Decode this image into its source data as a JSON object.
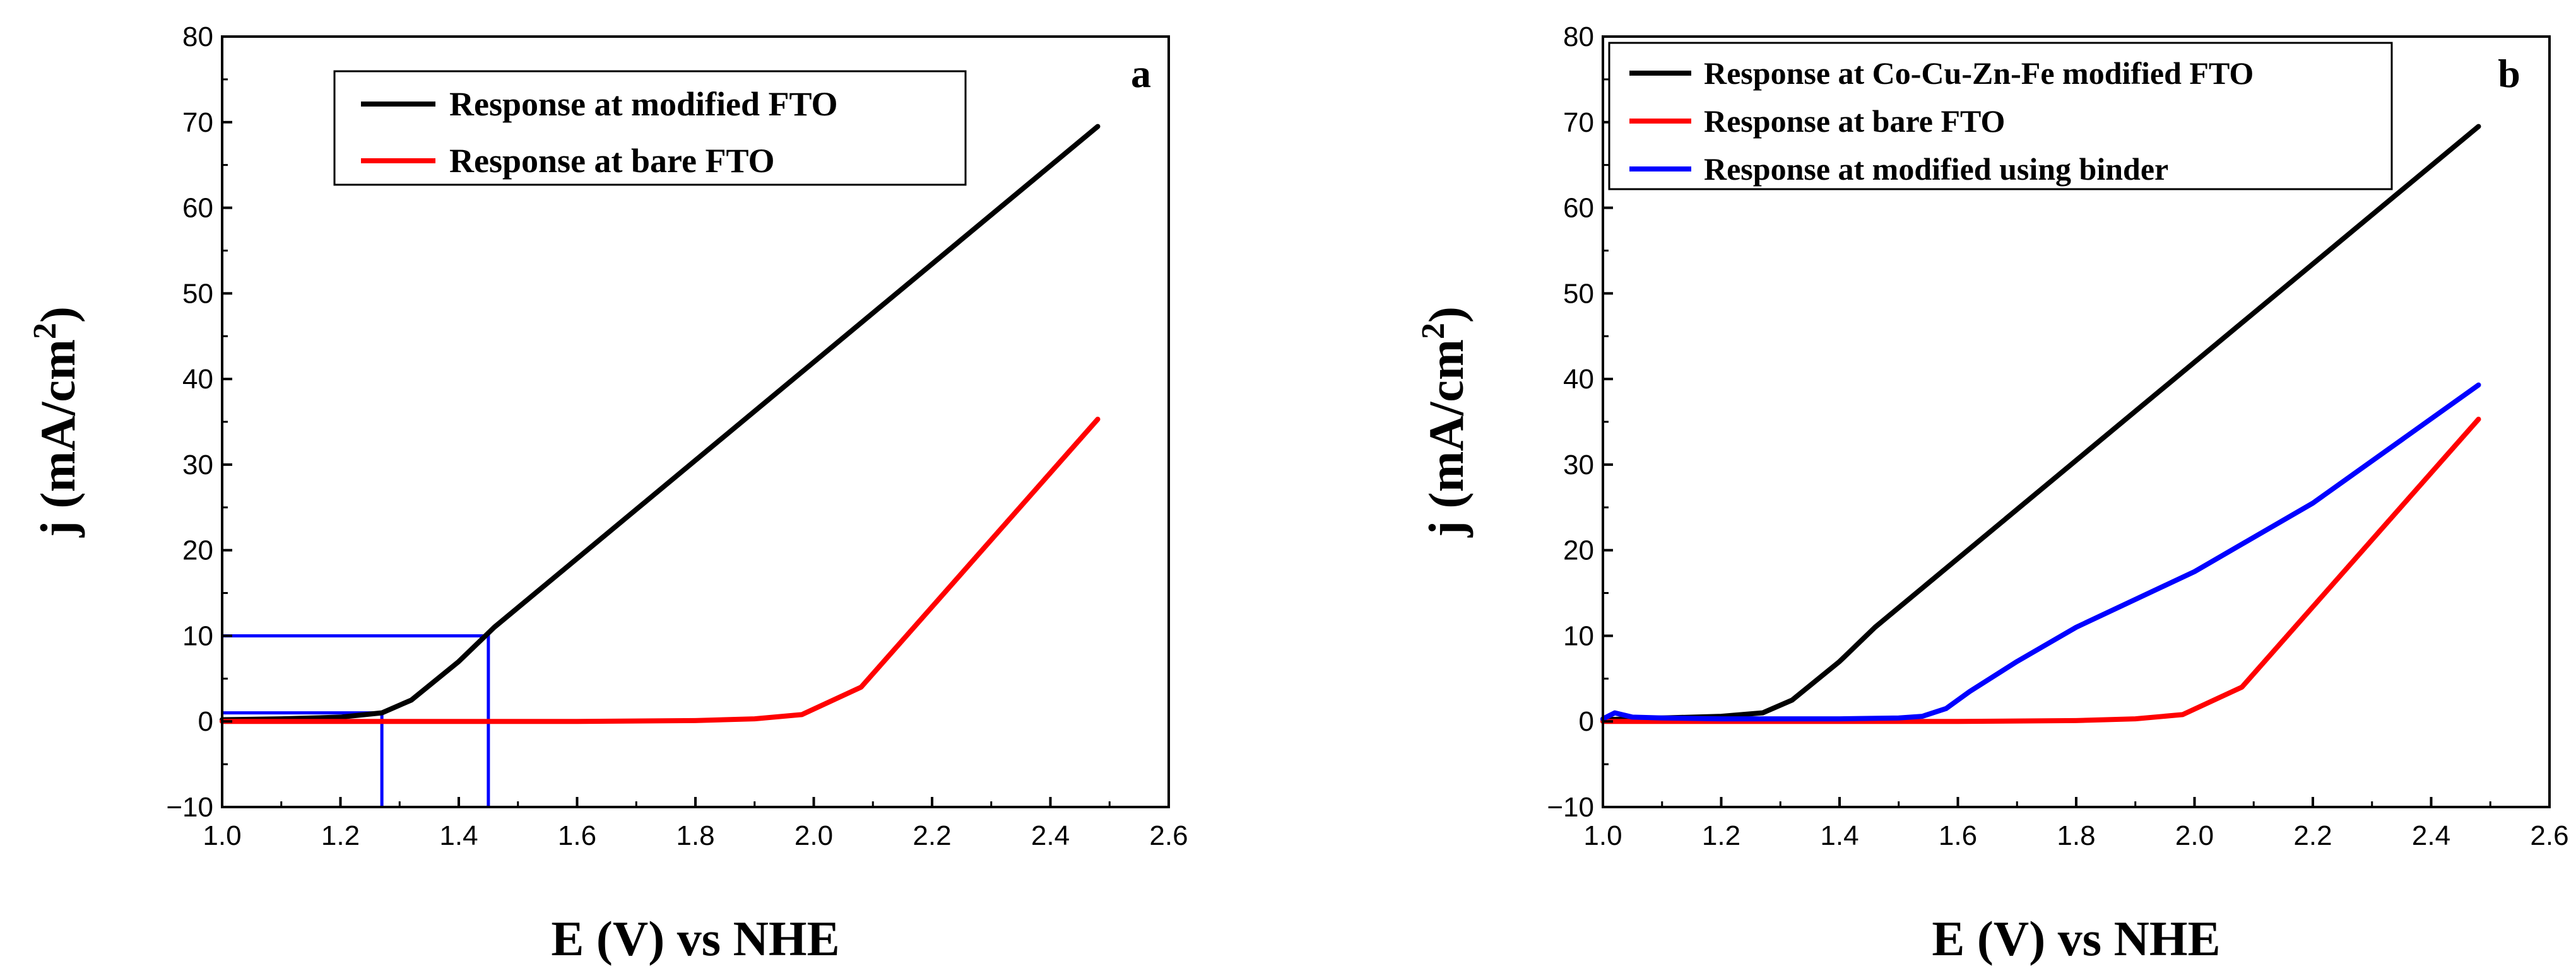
{
  "chart_data": [
    {
      "type": "line",
      "panel_label": "a",
      "xlabel": "E (V) vs NHE",
      "ylabel": {
        "main": "j (mA/cm",
        "sup": "2",
        "end": ")"
      },
      "xlim": [
        1.0,
        2.6
      ],
      "ylim": [
        -10,
        80
      ],
      "xticks": [
        "1.0",
        "1.2",
        "1.4",
        "1.6",
        "1.8",
        "2.0",
        "2.2",
        "2.4",
        "2.6"
      ],
      "yticks": [
        "-10",
        "0",
        "10",
        "20",
        "30",
        "40",
        "50",
        "60",
        "70",
        "80"
      ],
      "legend_position": "top-center",
      "series": [
        {
          "name": "Response at modified FTO",
          "color": "#000000",
          "x": [
            1.0,
            1.1,
            1.2,
            1.27,
            1.32,
            1.4,
            1.46,
            2.48
          ],
          "y": [
            0.2,
            0.3,
            0.5,
            1.0,
            2.5,
            7.0,
            11.0,
            69.5
          ]
        },
        {
          "name": "Response at bare FTO",
          "color": "#ff0000",
          "x": [
            1.0,
            1.2,
            1.4,
            1.6,
            1.8,
            1.9,
            1.98,
            2.08,
            2.48
          ],
          "y": [
            0.0,
            0.0,
            0.0,
            0.0,
            0.1,
            0.3,
            0.8,
            4.0,
            35.3
          ]
        }
      ],
      "annotations": [
        {
          "color": "#0000ff",
          "x": [
            1.0,
            1.45,
            1.45
          ],
          "y": [
            10,
            10,
            -10
          ]
        },
        {
          "color": "#0000ff",
          "x": [
            1.0,
            1.27,
            1.27
          ],
          "y": [
            1,
            1,
            -10
          ]
        }
      ]
    },
    {
      "type": "line",
      "panel_label": "b",
      "xlabel": "E (V) vs NHE",
      "ylabel": {
        "main": "j (mA/cm",
        "sup": "2",
        "end": ")"
      },
      "xlim": [
        1.0,
        2.6
      ],
      "ylim": [
        -10,
        80
      ],
      "xticks": [
        "1.0",
        "1.2",
        "1.4",
        "1.6",
        "1.8",
        "2.0",
        "2.2",
        "2.4",
        "2.6"
      ],
      "yticks": [
        "-10",
        "0",
        "10",
        "20",
        "30",
        "40",
        "50",
        "60",
        "70",
        "80"
      ],
      "legend_position": "top-left",
      "series": [
        {
          "name": "Response at Co-Cu-Zn-Fe modified FTO",
          "color": "#000000",
          "x": [
            1.0,
            1.1,
            1.2,
            1.27,
            1.32,
            1.4,
            1.46,
            2.48
          ],
          "y": [
            0.2,
            0.4,
            0.6,
            1.0,
            2.5,
            7.0,
            11.0,
            69.5
          ]
        },
        {
          "name": "Response at bare FTO",
          "color": "#ff0000",
          "x": [
            1.0,
            1.2,
            1.4,
            1.6,
            1.8,
            1.9,
            1.98,
            2.08,
            2.48
          ],
          "y": [
            0.0,
            0.0,
            0.0,
            0.0,
            0.1,
            0.3,
            0.8,
            4.0,
            35.3
          ]
        },
        {
          "name": "Response at modified using binder",
          "color": "#0000ff",
          "x": [
            1.0,
            1.02,
            1.05,
            1.1,
            1.2,
            1.3,
            1.4,
            1.5,
            1.54,
            1.58,
            1.62,
            1.7,
            1.8,
            2.0,
            2.2,
            2.48
          ],
          "y": [
            0.3,
            1.0,
            0.5,
            0.4,
            0.3,
            0.3,
            0.3,
            0.4,
            0.6,
            1.5,
            3.5,
            7.0,
            11.0,
            17.5,
            25.5,
            39.3
          ]
        }
      ]
    }
  ]
}
